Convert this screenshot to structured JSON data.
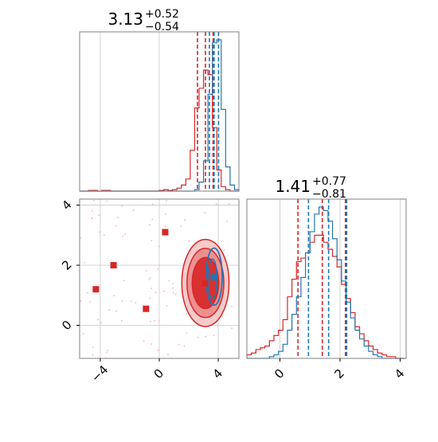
{
  "colors": {
    "red": "#d62728",
    "blue": "#1f77b4",
    "grid": "#c8c8c8",
    "frame": "#808080"
  },
  "chart_data": [
    {
      "type": "histogram",
      "panel": "top-left",
      "title": {
        "base": "3.13",
        "sup": "+0.52",
        "sub": "−0.54"
      },
      "xlim": [
        -5.4,
        5.4
      ],
      "grid": true,
      "bins": [
        -5.4,
        -5.1,
        -4.8,
        -4.5,
        -4.2,
        -3.9,
        -3.6,
        -3.3,
        -3.0,
        -2.7,
        -2.4,
        -2.1,
        -1.8,
        -1.5,
        -1.2,
        -0.9,
        -0.6,
        -0.3,
        0.0,
        0.3,
        0.6,
        0.9,
        1.2,
        1.5,
        1.8,
        2.1,
        2.4,
        2.7,
        3.0,
        3.3,
        3.6,
        3.9,
        4.2,
        4.5,
        4.8,
        5.1,
        5.4
      ],
      "series": [
        {
          "color": "red",
          "counts": [
            0,
            0,
            0.5,
            0.5,
            0,
            0.5,
            0.5,
            0,
            0,
            0,
            0,
            0,
            0,
            0,
            0,
            0,
            0,
            0,
            0.5,
            1,
            0.5,
            1,
            2,
            4,
            8,
            27,
            55,
            68,
            80,
            77,
            42,
            14,
            3,
            1,
            0,
            0
          ],
          "quantiles": [
            2.59,
            3.13,
            3.65
          ]
        },
        {
          "color": "blue",
          "counts": [
            0,
            0,
            0,
            0,
            0,
            0,
            0,
            0,
            0,
            0,
            0,
            0,
            0,
            0,
            0,
            0,
            0,
            0,
            0,
            0,
            0,
            0,
            0,
            0,
            0,
            0,
            1,
            6,
            20,
            64,
            98,
            100,
            54,
            16,
            4,
            1
          ],
          "quantiles": [
            3.4,
            3.72,
            4.02
          ]
        }
      ]
    },
    {
      "type": "histogram",
      "panel": "bottom-right",
      "title": {
        "base": "1.41",
        "sup": "+0.77",
        "sub": "−0.81"
      },
      "xlim": [
        -1.1,
        4.2
      ],
      "xticks": [
        "0",
        "2",
        "4"
      ],
      "grid": true,
      "bins": [
        -1.1,
        -0.95,
        -0.8,
        -0.65,
        -0.5,
        -0.35,
        -0.2,
        -0.05,
        0.1,
        0.25,
        0.4,
        0.55,
        0.7,
        0.85,
        1.0,
        1.15,
        1.3,
        1.45,
        1.6,
        1.75,
        1.9,
        2.05,
        2.2,
        2.35,
        2.5,
        2.65,
        2.8,
        2.95,
        3.1,
        3.25,
        3.4,
        3.55,
        3.7,
        3.85,
        4.0,
        4.15
      ],
      "series": [
        {
          "color": "red",
          "counts": [
            2,
            3,
            5,
            6,
            7,
            10,
            13,
            16,
            22,
            35,
            45,
            55,
            57,
            60,
            66,
            70,
            70,
            66,
            62,
            58,
            52,
            42,
            34,
            26,
            18,
            14,
            10,
            7,
            5,
            3,
            2,
            1,
            1,
            0,
            0
          ],
          "quantiles": [
            0.6,
            1.41,
            2.18
          ]
        },
        {
          "color": "blue",
          "counts": [
            0,
            0,
            0,
            0,
            0,
            1,
            2,
            4,
            8,
            16,
            25,
            35,
            46,
            60,
            72,
            82,
            86,
            84,
            78,
            68,
            56,
            44,
            32,
            23,
            16,
            11,
            7,
            4,
            2,
            1,
            0,
            0,
            0,
            0,
            0
          ],
          "quantiles": [
            0.95,
            1.62,
            2.22
          ]
        }
      ]
    },
    {
      "type": "scatter",
      "panel": "bottom-left",
      "xlim": [
        -5.4,
        5.4
      ],
      "ylim": [
        -1.1,
        4.2
      ],
      "xticks": [
        "−4",
        "0",
        "4"
      ],
      "yticks": [
        "0",
        "2",
        "4"
      ],
      "grid": true,
      "markers": [
        {
          "color": "red",
          "points": [
            [
              -4.3,
              1.2
            ],
            [
              -3.1,
              2.0
            ],
            [
              -0.9,
              0.55
            ],
            [
              0.4,
              3.1
            ],
            [
              3.1,
              1.4
            ]
          ]
        },
        {
          "color": "blue",
          "points": [
            [
              3.7,
              1.6
            ]
          ]
        }
      ],
      "contours": [
        {
          "color": "red",
          "center": [
            3.13,
            1.41
          ],
          "radii": [
            [
              1.6,
              1.45
            ],
            [
              1.25,
              1.15
            ],
            [
              0.9,
              0.85
            ]
          ]
        },
        {
          "color": "blue",
          "center": [
            3.72,
            1.62
          ],
          "radii": [
            [
              0.55,
              0.95
            ]
          ]
        }
      ]
    }
  ]
}
